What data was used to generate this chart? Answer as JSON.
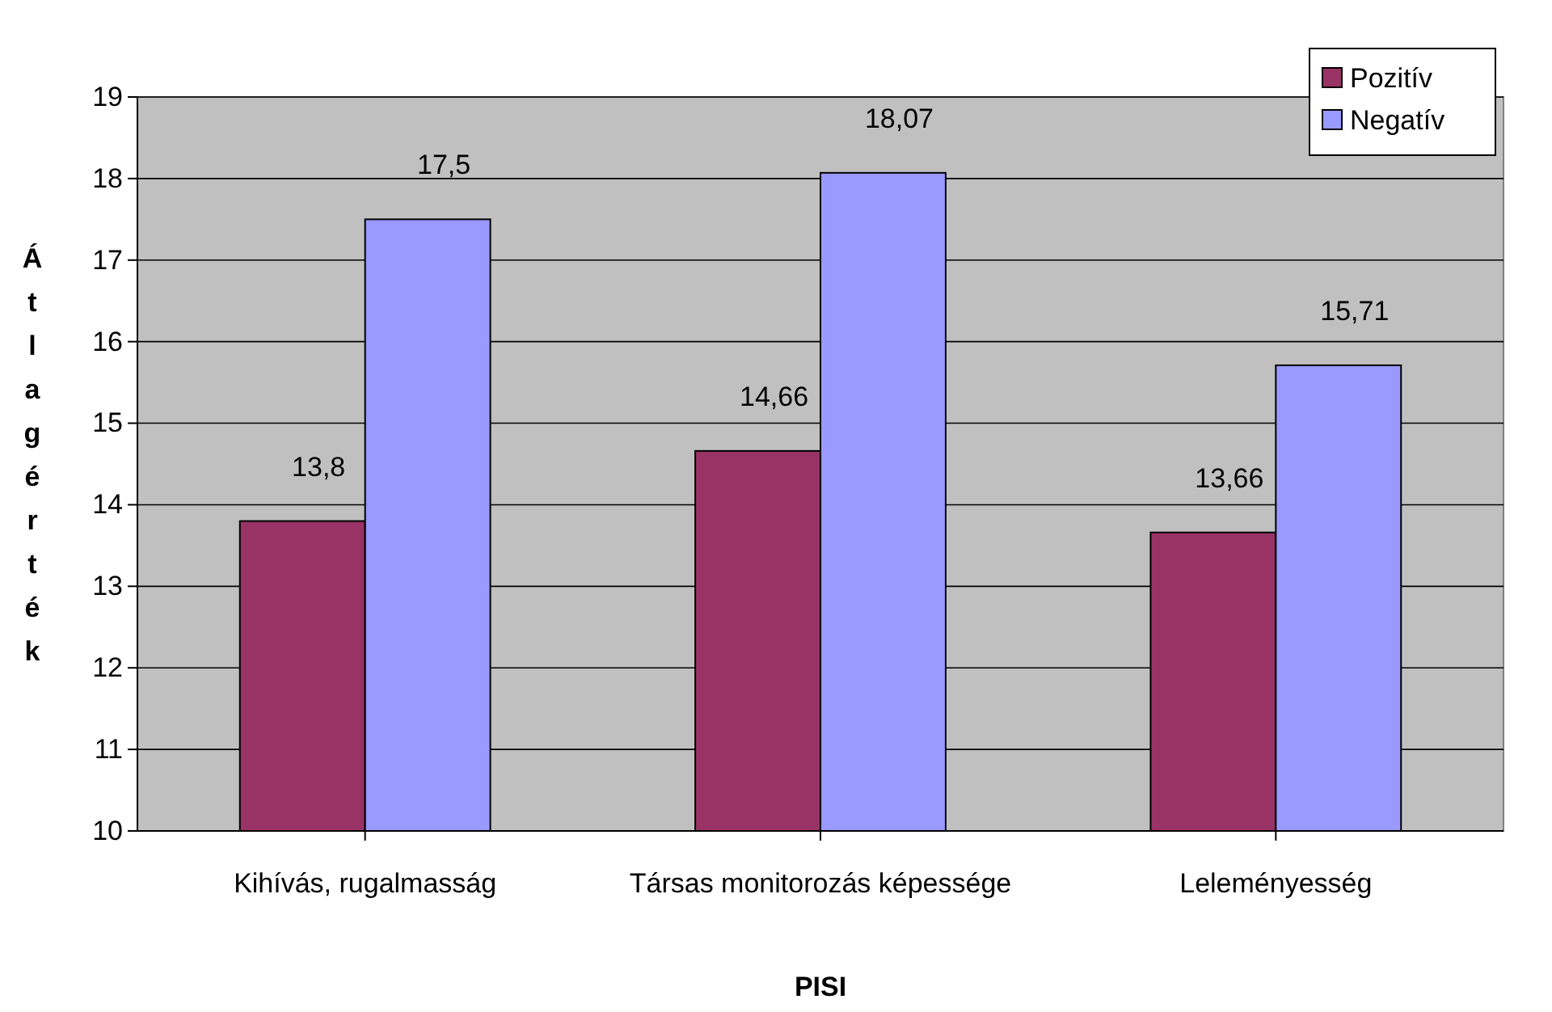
{
  "chart_data": {
    "type": "bar",
    "xlabel": "PISI",
    "ylabel": "Átlagérték",
    "categories": [
      "Kihívás, rugalmasság",
      "Társas monitorozás képessége",
      "Leleményesség"
    ],
    "series": [
      {
        "name": "Pozitív",
        "color": "#993366",
        "values": [
          13.8,
          14.66,
          13.66
        ],
        "value_labels": [
          "13,8",
          "14,66",
          "13,66"
        ]
      },
      {
        "name": "Negatív",
        "color": "#9999ff",
        "values": [
          17.5,
          18.07,
          15.71
        ],
        "value_labels": [
          "17,5",
          "18,07",
          "15,71"
        ]
      }
    ],
    "ylim": [
      10,
      19
    ],
    "yticks": [
      10,
      11,
      12,
      13,
      14,
      15,
      16,
      17,
      18,
      19
    ],
    "grid": "y",
    "legend": "top right"
  }
}
